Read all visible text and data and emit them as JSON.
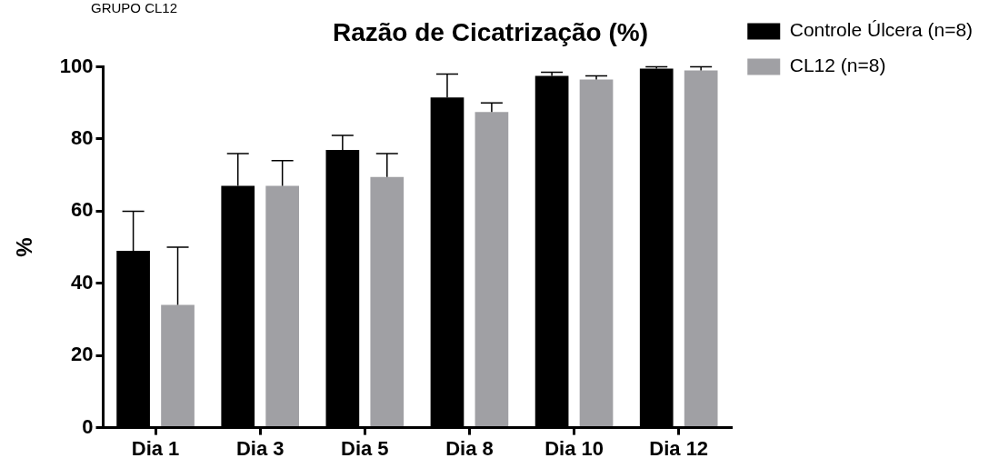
{
  "chart_data": {
    "type": "bar",
    "title": "Razão de Cicatrização (%)",
    "ylabel": "%",
    "annotations": [
      "GRUPO CL12"
    ],
    "categories": [
      "Dia 1",
      "Dia 3",
      "Dia 5",
      "Dia 8",
      "Dia 10",
      "Dia 12"
    ],
    "series": [
      {
        "name": "Controle Úlcera (n=8)",
        "color": "#000000",
        "values": [
          49,
          67,
          77,
          91.5,
          97.5,
          99.5
        ],
        "errors": [
          [
            49,
            60
          ],
          [
            67,
            76
          ],
          [
            77,
            81
          ],
          [
            91.5,
            98
          ],
          [
            97.5,
            98.5
          ],
          [
            99.5,
            100
          ]
        ]
      },
      {
        "name": "CL12 (n=8)",
        "color": "#a0a0a4",
        "values": [
          34,
          67,
          69.5,
          87.5,
          96.5,
          99
        ],
        "errors": [
          [
            34,
            50
          ],
          [
            67,
            74
          ],
          [
            69.5,
            76
          ],
          [
            87.5,
            90
          ],
          [
            96.5,
            97.5
          ],
          [
            99,
            100
          ]
        ]
      }
    ],
    "ylim": [
      0,
      100
    ],
    "yticks": [
      0,
      20,
      40,
      60,
      80,
      100
    ],
    "grid": false,
    "legend": "top right"
  }
}
